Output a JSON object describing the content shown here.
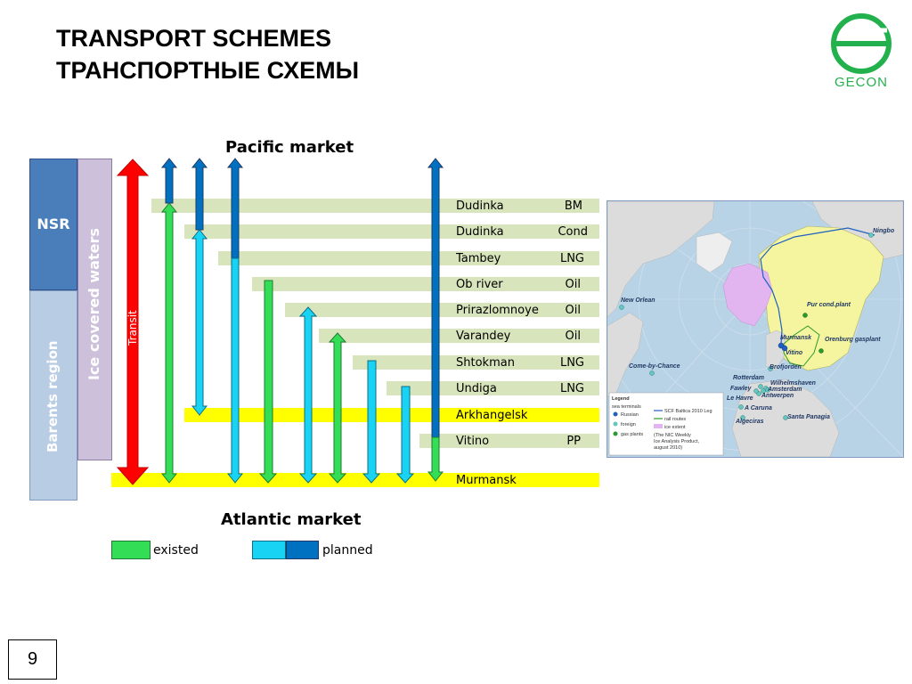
{
  "title": {
    "line1": "TRANSPORT SCHEMES",
    "line2": "ТРАНСПОРТНЫЕ СХЕМЫ"
  },
  "logo": {
    "text": "GECON",
    "color": "#22b14c"
  },
  "markets": {
    "top": "Pacific market",
    "bottom": "Atlantic market"
  },
  "regions": {
    "nsr": "NSR",
    "barents": "Barents region",
    "ice": "Ice covered waters",
    "transit": "Transit"
  },
  "rows": [
    {
      "name": "Dudinka",
      "product": "BM"
    },
    {
      "name": "Dudinka",
      "product": "Cond"
    },
    {
      "name": "Tambey",
      "product": "LNG"
    },
    {
      "name": "Ob river",
      "product": "Oil"
    },
    {
      "name": "Prirazlomnoye",
      "product": "Oil"
    },
    {
      "name": "Varandey",
      "product": "Oil"
    },
    {
      "name": "Shtokman",
      "product": "LNG"
    },
    {
      "name": "Undiga",
      "product": "LNG"
    },
    {
      "name": "Arkhangelsk",
      "product": ""
    },
    {
      "name": "Vitino",
      "product": "PP"
    },
    {
      "name": "Murmansk",
      "product": ""
    }
  ],
  "legend": {
    "existed": "existed",
    "planned": "planned"
  },
  "colors": {
    "existed": "#33dd55",
    "planned_light": "#19d3f5",
    "planned_dark": "#0070c0",
    "transit": "#ff0000",
    "nsr": "#4a7ebb",
    "barents": "#b8cce4",
    "ice": "#ccc0da"
  },
  "map": {
    "labels": [
      "Ningbo",
      "New Orlean",
      "Pur cond.plant",
      "Murmansk",
      "Vitino",
      "Orenburg gasplant",
      "Come-by-Chance",
      "Brofjorden",
      "Rotterdam",
      "Wilhelmshaven",
      "Fawley",
      "Amsterdam",
      "Le Havre",
      "Antwerpen",
      "A Caruna",
      "Algeciras",
      "Santa Panagia"
    ],
    "legend": {
      "title": "Legend",
      "sea_terminals": "sea terminals",
      "russian": "Russian",
      "foreign": "foreign",
      "gas_plants": "gas plants",
      "route": "SCF Baltica 2010 Leg",
      "rail": "rail routes",
      "ice": "ice extent",
      "source1": "(The NIC Weekly",
      "source2": "Ice Analysis Product,",
      "source3": "august 2010)"
    }
  },
  "page_number": "9"
}
